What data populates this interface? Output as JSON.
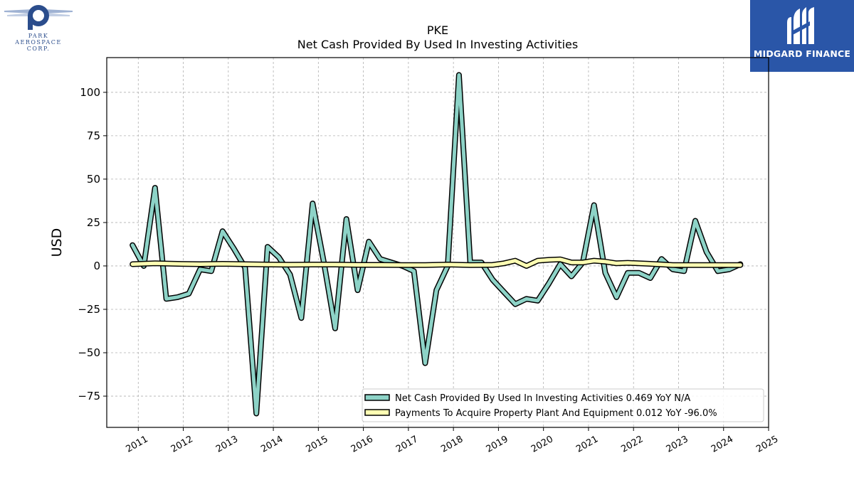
{
  "branding": {
    "left_logo_text": [
      "PARK",
      "AEROSPACE",
      "CORP."
    ],
    "right_logo_text": "MIDGARD FINANCE"
  },
  "chart_data": {
    "type": "line",
    "title": "PKE",
    "subtitle": "Net Cash Provided By Used In Investing Activities",
    "xlabel": "",
    "ylabel": "USD",
    "xlim": [
      2010.3,
      2025.0
    ],
    "ylim": [
      -93,
      120
    ],
    "x_ticks": [
      "2011",
      "2012",
      "2013",
      "2014",
      "2015",
      "2016",
      "2017",
      "2018",
      "2019",
      "2020",
      "2021",
      "2022",
      "2023",
      "2024",
      "2025"
    ],
    "y_ticks": [
      -75,
      -50,
      -25,
      0,
      25,
      50,
      75,
      100
    ],
    "grid": true,
    "legend_position": "lower-right",
    "colors": {
      "series1": "#8dd3c7",
      "series2": "#ffffb3",
      "outline": "#000000"
    },
    "series": [
      {
        "name": "Net Cash Provided By Used In Investing Activities",
        "legend_label": "Net Cash Provided By Used In Investing Activities  0.469 YoY N/A",
        "color": "#8dd3c7",
        "x": [
          "2010-11-15",
          "2011-02-15",
          "2011-05-15",
          "2011-08-15",
          "2011-11-15",
          "2012-02-15",
          "2012-05-15",
          "2012-08-15",
          "2012-11-15",
          "2013-02-15",
          "2013-05-15",
          "2013-08-15",
          "2013-11-15",
          "2014-02-15",
          "2014-05-15",
          "2014-08-15",
          "2014-11-15",
          "2015-02-15",
          "2015-05-15",
          "2015-08-15",
          "2015-11-15",
          "2016-02-15",
          "2016-05-15",
          "2016-08-15",
          "2016-11-15",
          "2017-02-15",
          "2017-05-15",
          "2017-08-15",
          "2017-11-15",
          "2018-02-15",
          "2018-05-15",
          "2018-08-15",
          "2018-11-15",
          "2019-02-15",
          "2019-05-15",
          "2019-08-15",
          "2019-11-15",
          "2020-02-15",
          "2020-05-15",
          "2020-08-15",
          "2020-11-15",
          "2021-02-15",
          "2021-05-15",
          "2021-08-15",
          "2021-11-15",
          "2022-02-15",
          "2022-05-15",
          "2022-08-15",
          "2022-11-15",
          "2023-02-15",
          "2023-05-15",
          "2023-08-15",
          "2023-11-15",
          "2024-02-15",
          "2024-05-15"
        ],
        "values": [
          12,
          0,
          45,
          -19,
          -18,
          -16,
          -2,
          -3,
          20,
          10,
          -1,
          -85,
          11,
          5,
          -5,
          -30,
          36,
          2,
          -36,
          27,
          -14,
          14,
          4,
          2,
          0,
          -3,
          -56,
          -14,
          0,
          110,
          2,
          2,
          -8,
          -15,
          -22,
          -19,
          -20,
          -10,
          1,
          -6,
          2,
          35,
          -4,
          -18,
          -4,
          -4,
          -7,
          4,
          -2,
          -3,
          26,
          8,
          -3,
          -2,
          1
        ]
      },
      {
        "name": "Payments To Acquire Property Plant And Equipment",
        "legend_label": "Payments To Acquire Property Plant And Equipment  0.012 YoY -96.0%",
        "color": "#ffffb3",
        "x": [
          "2010-11-15",
          "2011-05-15",
          "2011-11-15",
          "2012-05-15",
          "2012-11-15",
          "2013-05-15",
          "2013-11-15",
          "2014-05-15",
          "2014-11-15",
          "2015-05-15",
          "2015-11-15",
          "2016-05-15",
          "2016-11-15",
          "2017-05-15",
          "2017-11-15",
          "2018-05-15",
          "2018-11-15",
          "2019-02-15",
          "2019-05-15",
          "2019-08-15",
          "2019-11-15",
          "2020-02-15",
          "2020-05-15",
          "2020-08-15",
          "2020-11-15",
          "2021-02-15",
          "2021-05-15",
          "2021-08-15",
          "2021-11-15",
          "2022-05-15",
          "2022-11-15",
          "2023-05-15",
          "2023-11-15",
          "2024-05-15"
        ],
        "values": [
          1,
          1.5,
          1.2,
          1,
          1.2,
          1,
          0.8,
          0.7,
          0.8,
          0.8,
          0.6,
          0.6,
          0.5,
          0.5,
          0.8,
          0.5,
          0.6,
          1.5,
          3,
          0,
          3,
          3.5,
          3.8,
          2,
          2,
          3,
          2.5,
          1.5,
          1.8,
          1.2,
          0.5,
          0.5,
          0.5,
          0.5
        ]
      }
    ]
  }
}
